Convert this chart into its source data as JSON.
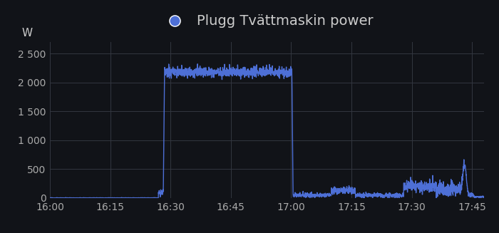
{
  "title": "Plugg Tvättmaskin power",
  "ylabel": "W",
  "background_color": "#111318",
  "grid_color": "#333740",
  "line_color": "#4d6fd6",
  "legend_dot_color": "#4d6fd6",
  "text_color": "#cccccc",
  "tick_color": "#aaaaaa",
  "ylim": [
    0,
    2700
  ],
  "yticks": [
    0,
    500,
    1000,
    1500,
    2000,
    2500
  ],
  "ytick_labels": [
    "0",
    "500",
    "1 000",
    "1 500",
    "2 000",
    "2 500"
  ],
  "xtick_labels": [
    "16:00",
    "16:15",
    "16:30",
    "16:45",
    "17:00",
    "17:15",
    "17:30",
    "17:45"
  ],
  "x_start_min": 0,
  "x_end_min": 108,
  "xtick_positions": [
    0,
    15,
    30,
    45,
    60,
    75,
    90,
    105
  ],
  "line_width": 1.0,
  "title_fontsize": 14,
  "tick_fontsize": 10,
  "ylabel_fontsize": 11
}
